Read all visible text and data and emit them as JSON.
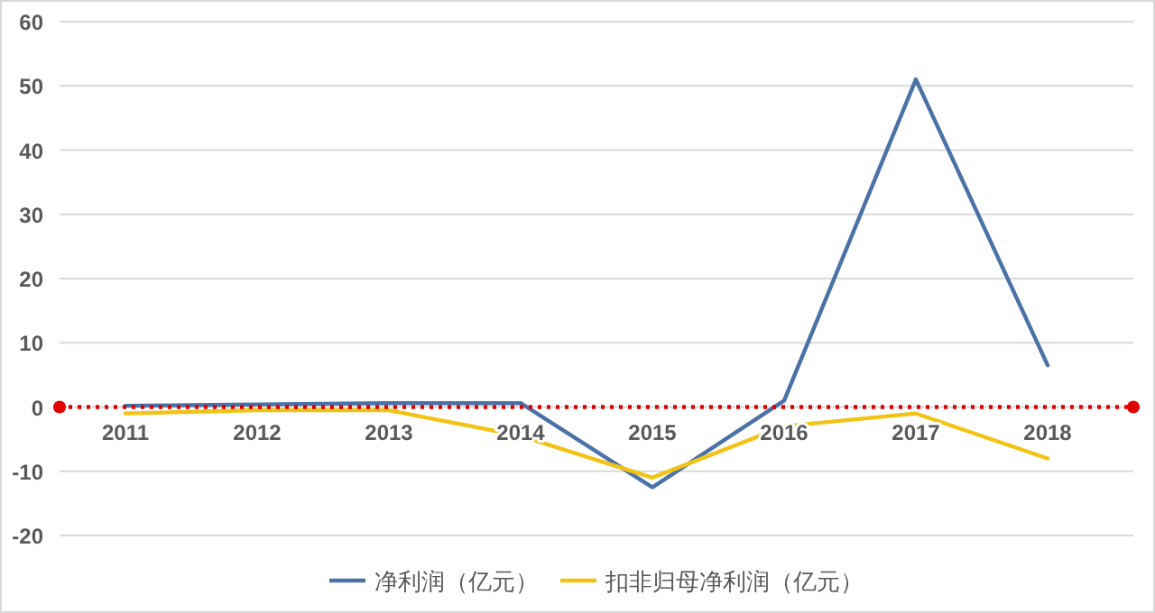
{
  "chart_data": {
    "type": "line",
    "categories": [
      "2011",
      "2012",
      "2013",
      "2014",
      "2015",
      "2016",
      "2017",
      "2018"
    ],
    "series": [
      {
        "name": "净利润（亿元）",
        "color": "#4a72a8",
        "values": [
          0.2,
          0.4,
          0.6,
          0.6,
          -12.5,
          1,
          51,
          6.5
        ]
      },
      {
        "name": "扣非归母净利润（亿元）",
        "color": "#f2c314",
        "values": [
          -1,
          -0.5,
          -0.5,
          -4.5,
          -11,
          -3,
          -1,
          -8
        ]
      }
    ],
    "ylim": [
      -20,
      60
    ],
    "yticks": [
      -20,
      -10,
      0,
      10,
      20,
      30,
      40,
      50,
      60
    ],
    "grid": "y",
    "legend": "bottom",
    "marker": "none",
    "line_style": "solid",
    "ref_lines": [
      {
        "axis": "y",
        "value": 0,
        "color": "#e00000",
        "line_style": "dotted"
      }
    ]
  }
}
